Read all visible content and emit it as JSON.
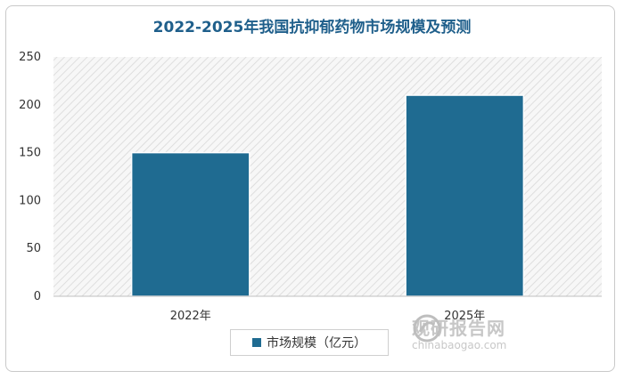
{
  "chart_data": {
    "type": "bar",
    "title": "2022-2025年我国抗抑郁药物市场规模及预测",
    "categories": [
      "2022年",
      "2025年"
    ],
    "series": [
      {
        "name": "市场规模（亿元）",
        "values": [
          150,
          210
        ]
      }
    ],
    "ylim": [
      0,
      250
    ],
    "yticks": [
      0,
      50,
      100,
      150,
      200,
      250
    ],
    "xlabel": "",
    "ylabel": "",
    "grid": false,
    "plot_background": "diagonal-hatch",
    "bar_color": "#1f6b91",
    "legend_position": "bottom"
  },
  "watermark": {
    "cn": "观研报告网",
    "en": "chinabaogao.com"
  }
}
